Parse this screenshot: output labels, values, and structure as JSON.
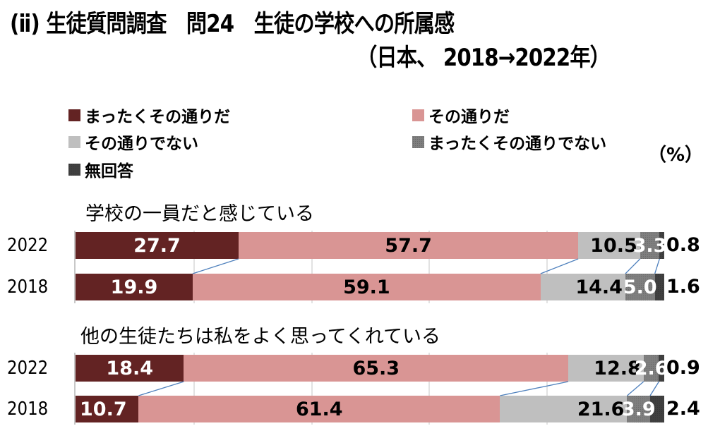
{
  "title": {
    "line1": "(ⅱ) 生徒質問調査　問24　生徒の学校への所属感",
    "line2": "（日本、 2018→2022年）"
  },
  "unit": "（%）",
  "colors": {
    "strongly_agree": "#632323",
    "agree": "#D99594",
    "disagree": "#BFBFBF",
    "strongly_disagree": "#7F7F7F",
    "no_response": "#404040",
    "connector": "#4F81BD"
  },
  "legend": [
    {
      "label": "まったくその通りだ",
      "color": "#632323"
    },
    {
      "label": "その通りだ",
      "color": "#D99594"
    },
    {
      "label": "その通りでない",
      "color": "#BFBFBF"
    },
    {
      "label": "まったくその通りでない",
      "color": "#7F7F7F"
    },
    {
      "label": "無回答",
      "color": "#404040"
    }
  ],
  "groups": [
    {
      "title": "学校の一員だと感じている",
      "rows": [
        {
          "year": "2022",
          "labels": [
            "27.7",
            "57.7",
            "10.5",
            "3.3",
            "0.8"
          ]
        },
        {
          "year": "2018",
          "labels": [
            "19.9",
            "59.1",
            "14.4",
            "5.0",
            "1.6"
          ]
        }
      ]
    },
    {
      "title": "他の生徒たちは私をよく思ってくれている",
      "rows": [
        {
          "year": "2022",
          "labels": [
            "18.4",
            "65.3",
            "12.8",
            "2.6",
            "0.9"
          ]
        },
        {
          "year": "2018",
          "labels": [
            "10.7",
            "61.4",
            "21.6",
            "3.9",
            "2.4"
          ]
        }
      ]
    }
  ],
  "chart_data": {
    "type": "bar",
    "orientation": "horizontal",
    "stacked": true,
    "title": "(ⅱ) 生徒質問調査　問24　生徒の学校への所属感（日本、 2018→2022年）",
    "unit": "%",
    "xlim": [
      0,
      100
    ],
    "grid": true,
    "gridlines_at": [
      20,
      40,
      60,
      80
    ],
    "legend_position": "top",
    "series_names": [
      "まったくその通りだ",
      "その通りだ",
      "その通りでない",
      "まったくその通りでない",
      "無回答"
    ],
    "panels": [
      {
        "title": "学校の一員だと感じている",
        "categories": [
          "2022",
          "2018"
        ],
        "series": [
          {
            "name": "まったくその通りだ",
            "values": [
              27.7,
              19.9
            ]
          },
          {
            "name": "その通りだ",
            "values": [
              57.7,
              59.1
            ]
          },
          {
            "name": "その通りでない",
            "values": [
              10.5,
              14.4
            ]
          },
          {
            "name": "まったくその通りでない",
            "values": [
              3.3,
              5.0
            ]
          },
          {
            "name": "無回答",
            "values": [
              0.8,
              1.6
            ]
          }
        ]
      },
      {
        "title": "他の生徒たちは私をよく思ってくれている",
        "categories": [
          "2022",
          "2018"
        ],
        "series": [
          {
            "name": "まったくその通りだ",
            "values": [
              18.4,
              10.7
            ]
          },
          {
            "name": "その通りだ",
            "values": [
              65.3,
              61.4
            ]
          },
          {
            "name": "その通りでない",
            "values": [
              12.8,
              21.6
            ]
          },
          {
            "name": "まったくその通りでない",
            "values": [
              2.6,
              3.9
            ]
          },
          {
            "name": "無回答",
            "values": [
              0.9,
              2.4
            ]
          }
        ]
      }
    ]
  }
}
